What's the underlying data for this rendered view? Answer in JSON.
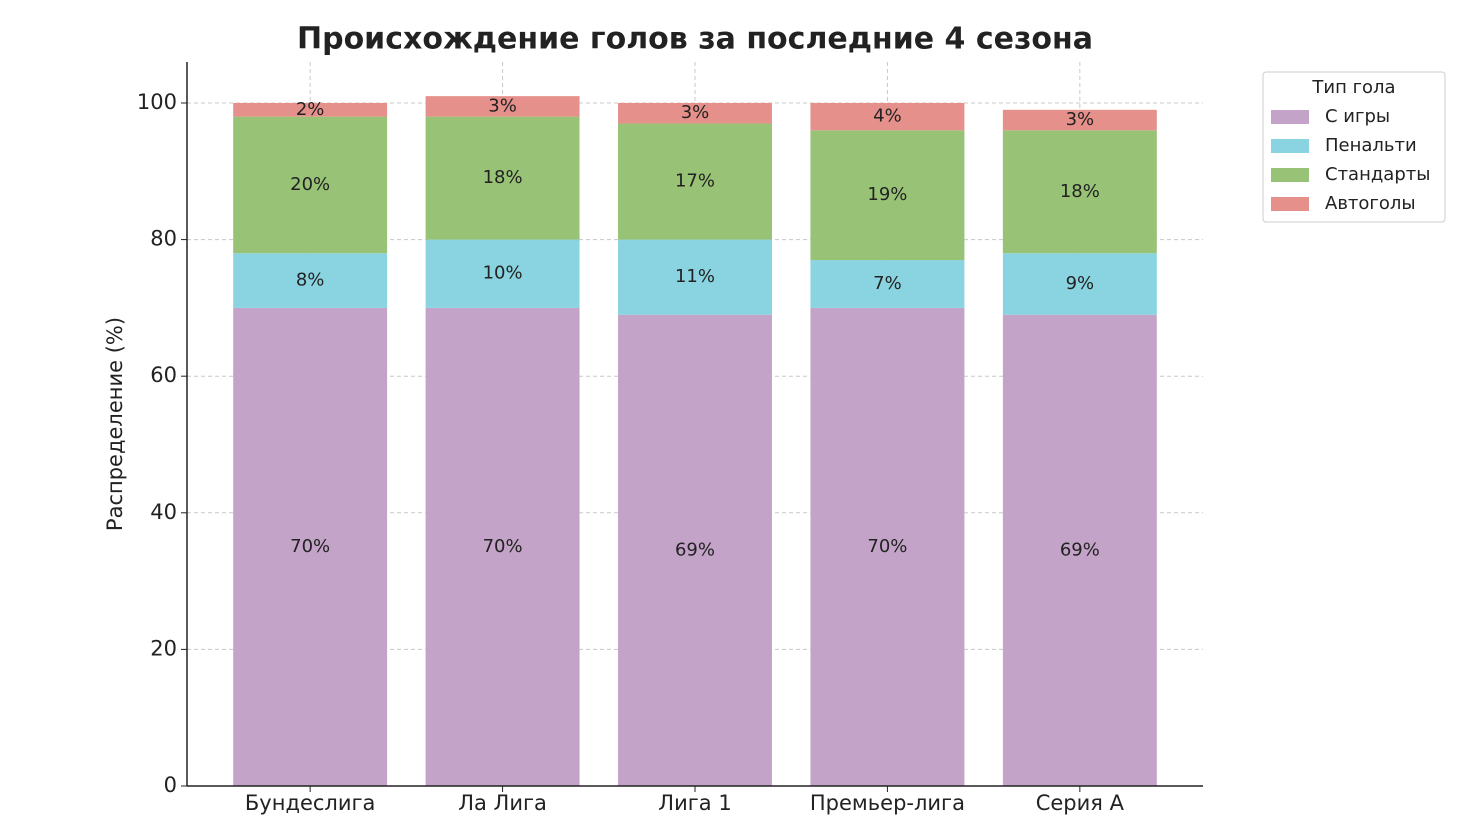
{
  "chart_data": {
    "type": "stacked_bar",
    "title": "Происхождение голов за последние 4 сезона",
    "y_label": "Распределение (%)",
    "legend_title": "Тип гола",
    "categories": [
      "Бундеслига",
      "Ла Лига",
      "Лига 1",
      "Премьер-лига",
      "Серия A"
    ],
    "series": [
      {
        "name": "С игры",
        "color": "#c3a3c7",
        "values": [
          70,
          70,
          69,
          70,
          69
        ],
        "value_labels": [
          "70%",
          "70%",
          "69%",
          "70%",
          "69%"
        ]
      },
      {
        "name": "Пенальти",
        "color": "#89d4e0",
        "values": [
          8,
          10,
          11,
          7,
          9
        ],
        "value_labels": [
          "8%",
          "10%",
          "11%",
          "7%",
          "9%"
        ]
      },
      {
        "name": "Стандарты",
        "color": "#98c377",
        "values": [
          20,
          18,
          17,
          19,
          18
        ],
        "value_labels": [
          "20%",
          "18%",
          "17%",
          "19%",
          "18%"
        ]
      },
      {
        "name": "Автоголы",
        "color": "#e5908a",
        "values": [
          2,
          3,
          3,
          4,
          3
        ],
        "value_labels": [
          "2%",
          "3%",
          "3%",
          "4%",
          "3%"
        ]
      }
    ],
    "ylim": [
      0,
      106
    ],
    "yticks": [
      0,
      20,
      40,
      60,
      80,
      100
    ],
    "grid": true
  }
}
